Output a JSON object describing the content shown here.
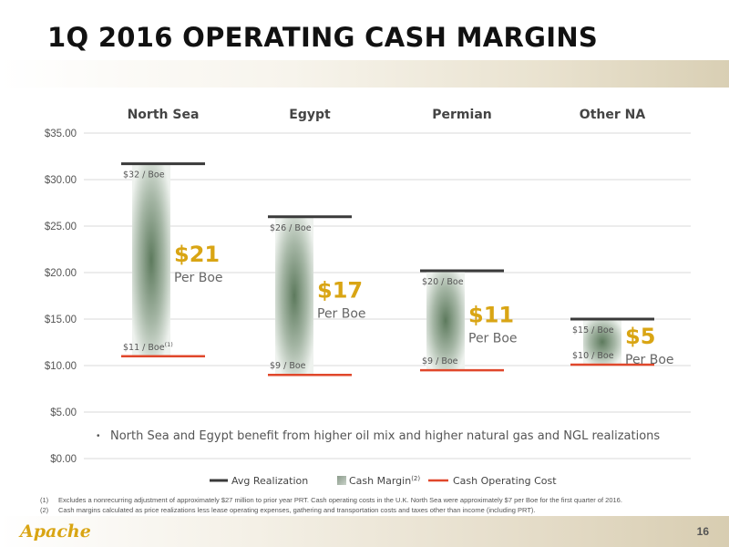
{
  "title": "1Q 2016 OPERATING CASH MARGINS",
  "page_number": "16",
  "logo_text": "Apache",
  "colors": {
    "avg_realization": "#3a3a3a",
    "cash_margin": "#6f8a6f",
    "cash_operating_cost": "#e0472b",
    "margin_label": "#d9a514"
  },
  "chart_data": {
    "type": "bar",
    "categories": [
      "North Sea",
      "Egypt",
      "Permian",
      "Other NA"
    ],
    "ylim": [
      0,
      35
    ],
    "yticks": [
      "$0.00",
      "$5.00",
      "$10.00",
      "$15.00",
      "$20.00",
      "$25.00",
      "$30.00",
      "$35.00"
    ],
    "series": [
      {
        "name": "Avg Realization",
        "values": [
          31.7,
          26.0,
          20.2,
          15.0
        ]
      },
      {
        "name": "Cash Margin",
        "values": [
          20.7,
          17.0,
          10.7,
          4.9
        ]
      },
      {
        "name": "Cash Operating Cost",
        "values": [
          11.0,
          9.0,
          9.5,
          10.1
        ]
      }
    ],
    "realization_labels": [
      "$32 / Boe",
      "$26 / Boe",
      "$20 / Boe",
      "$15 / Boe"
    ],
    "cost_labels": [
      "$11 / Boe",
      "$9 / Boe",
      "$9 / Boe",
      "$10 / Boe"
    ],
    "cost_label_superscripts": [
      "(1)",
      "",
      "",
      ""
    ],
    "margin_labels": [
      "$21",
      "$17",
      "$11",
      "$5"
    ],
    "margin_sublabel": "Per Boe",
    "annotation": "North Sea and Egypt benefit from higher oil mix and higher natural gas and NGL realizations",
    "legend_superscript": "(2)"
  },
  "footnotes": [
    {
      "mark": "(1)",
      "text": "Excludes a nonrecurring adjustment of approximately $27 million to prior year PRT. Cash operating costs in the U.K. North Sea were approximately $7 per Boe for the first quarter of 2016."
    },
    {
      "mark": "(2)",
      "text": "Cash margins calculated as price realizations less lease operating expenses, gathering and transportation costs and taxes other than income (including PRT)."
    }
  ]
}
